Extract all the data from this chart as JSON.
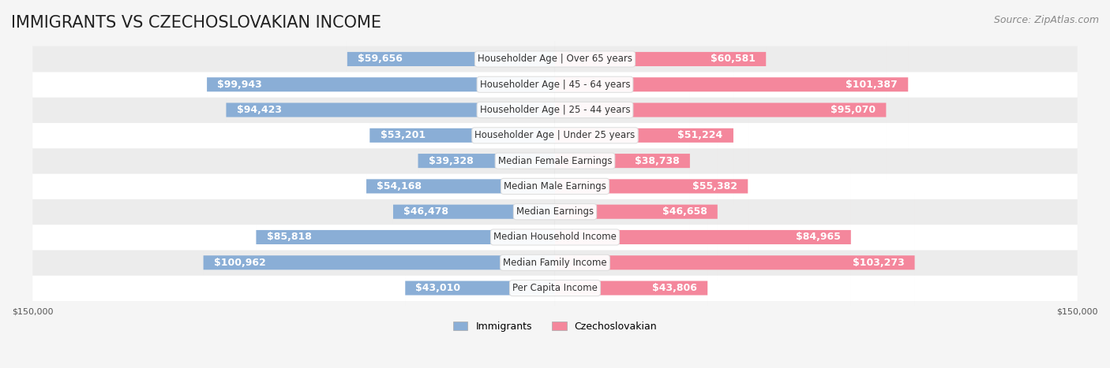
{
  "title": "IMMIGRANTS VS CZECHOSLOVAKIAN INCOME",
  "source": "Source: ZipAtlas.com",
  "categories": [
    "Per Capita Income",
    "Median Family Income",
    "Median Household Income",
    "Median Earnings",
    "Median Male Earnings",
    "Median Female Earnings",
    "Householder Age | Under 25 years",
    "Householder Age | 25 - 44 years",
    "Householder Age | 45 - 64 years",
    "Householder Age | Over 65 years"
  ],
  "immigrants_values": [
    43010,
    100962,
    85818,
    46478,
    54168,
    39328,
    53201,
    94423,
    99943,
    59656
  ],
  "czechoslovakian_values": [
    43806,
    103273,
    84965,
    46658,
    55382,
    38738,
    51224,
    95070,
    101387,
    60581
  ],
  "immigrants_labels": [
    "$43,010",
    "$100,962",
    "$85,818",
    "$46,478",
    "$54,168",
    "$39,328",
    "$53,201",
    "$94,423",
    "$99,943",
    "$59,656"
  ],
  "czechoslovakian_labels": [
    "$43,806",
    "$103,273",
    "$84,965",
    "$46,658",
    "$55,382",
    "$38,738",
    "$51,224",
    "$95,070",
    "$101,387",
    "$60,581"
  ],
  "immigrants_color": "#8AAED6",
  "czechoslovakian_color": "#F4879C",
  "immigrants_color_dark": "#6B8FBF",
  "czechoslovakian_color_dark": "#E86080",
  "max_value": 150000,
  "background_color": "#f5f5f5",
  "row_background": "#ffffff",
  "row_alt_background": "#f0f0f0",
  "label_color_dark": "#555555",
  "label_color_white": "#ffffff",
  "title_fontsize": 15,
  "source_fontsize": 9,
  "bar_label_fontsize": 9,
  "category_fontsize": 8.5,
  "legend_fontsize": 9,
  "axis_label_fontsize": 8
}
